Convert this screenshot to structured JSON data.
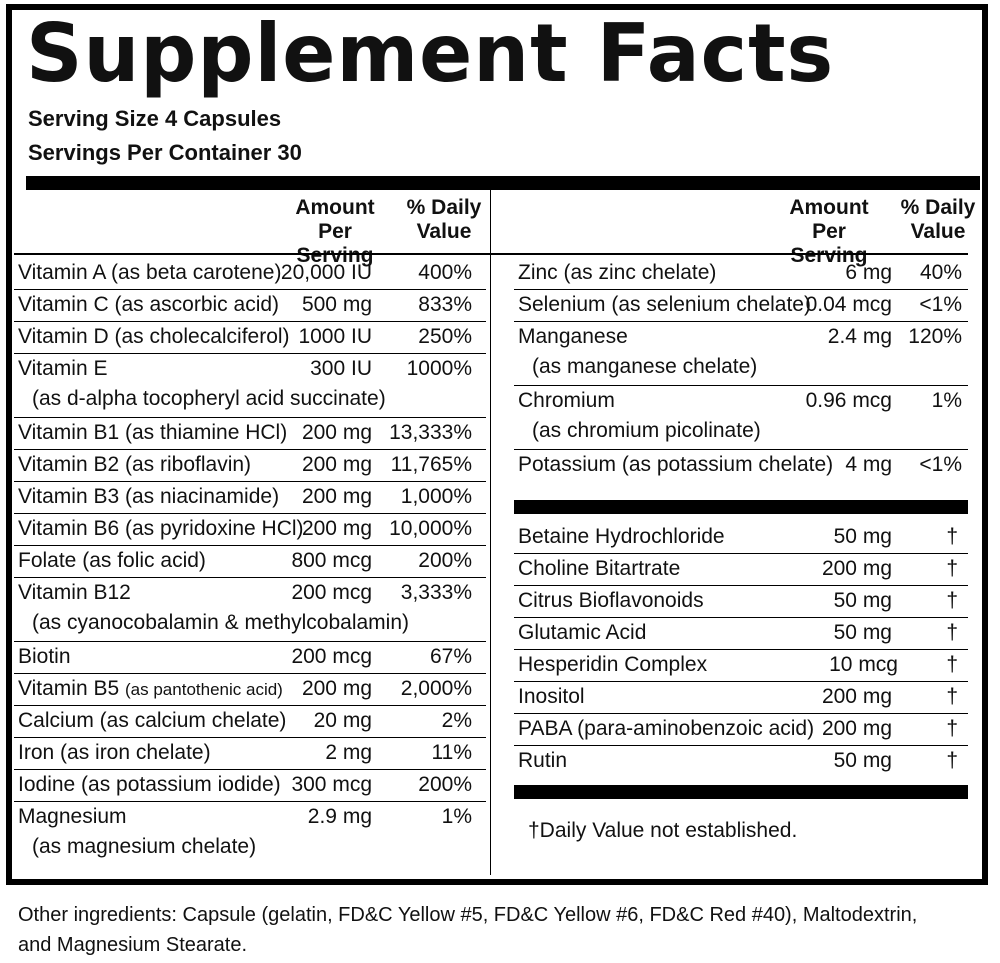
{
  "title": "Supplement Facts",
  "serving_size": "Serving Size 4 Capsules",
  "servings_per_container": "Servings Per Container 30",
  "headers": {
    "amount_line1": "Amount Per",
    "amount_line2": "Serving",
    "dv_line1": "% Daily",
    "dv_line2": "Value"
  },
  "left_rows": [
    {
      "name": "Vitamin A (as beta carotene)",
      "amount": "20,000 IU",
      "dv": "400%"
    },
    {
      "name": "Vitamin C (as ascorbic acid)",
      "amount": "500 mg",
      "dv": "833%"
    },
    {
      "name": "Vitamin D (as cholecalciferol)",
      "amount": "1000 IU",
      "dv": "250%"
    },
    {
      "name": "Vitamin E",
      "sub": "(as d-alpha tocopheryl acid succinate)",
      "amount": "300 IU",
      "dv": "1000%"
    },
    {
      "name": "Vitamin B1 (as thiamine HCl)",
      "amount": "200 mg",
      "dv": "13,333%"
    },
    {
      "name": "Vitamin B2 (as riboflavin)",
      "amount": "200 mg",
      "dv": "11,765%"
    },
    {
      "name": "Vitamin B3 (as niacinamide)",
      "amount": "200 mg",
      "dv": "1,000%"
    },
    {
      "name": "Vitamin B6  (as pyridoxine HCl)",
      "amount": "200 mg",
      "dv": "10,000%"
    },
    {
      "name": "Folate (as folic acid)",
      "amount": "800 mcg",
      "dv": "200%"
    },
    {
      "name": "Vitamin B12",
      "sub": "(as cyanocobalamin & methylcobalamin)",
      "amount": "200 mcg",
      "dv": "3,333%"
    },
    {
      "name": "Biotin",
      "amount": "200 mcg",
      "dv": "67%"
    },
    {
      "name": "Vitamin B5",
      "name_small": "(as pantothenic acid)",
      "amount": "200 mg",
      "dv": "2,000%"
    },
    {
      "name": "Calcium (as calcium chelate)",
      "amount": "20 mg",
      "dv": "2%"
    },
    {
      "name": "Iron (as iron chelate)",
      "amount": "2 mg",
      "dv": "11%"
    },
    {
      "name": "Iodine (as potassium iodide)",
      "amount": "300 mcg",
      "dv": "200%"
    },
    {
      "name": "Magnesium",
      "sub": "(as magnesium chelate)",
      "amount": "2.9 mg",
      "dv": "1%"
    }
  ],
  "right_rows": [
    {
      "name": "Zinc (as zinc chelate)",
      "amount": "6 mg",
      "dv": "40%"
    },
    {
      "name": "Selenium (as selenium chelate)",
      "amount": "0.04 mcg",
      "dv": "<1%"
    },
    {
      "name": "Manganese",
      "sub": "(as manganese chelate)",
      "amount": "2.4 mg",
      "dv": "120%"
    },
    {
      "name": "Chromium",
      "sub": "(as chromium picolinate)",
      "amount": "0.96 mcg",
      "dv": "1%"
    },
    {
      "name": "Potassium (as potassium chelate)",
      "amount": "4 mg",
      "dv": "<1%"
    }
  ],
  "other_rows": [
    {
      "name": "Betaine Hydrochloride",
      "amount": "50 mg",
      "dv": "†"
    },
    {
      "name": "Choline Bitartrate",
      "amount": "200 mg",
      "dv": "†"
    },
    {
      "name": "Citrus Bioflavonoids",
      "amount": "50 mg",
      "dv": "†"
    },
    {
      "name": "Glutamic Acid",
      "amount": "50 mg",
      "dv": "†"
    },
    {
      "name": "Hesperidin Complex",
      "amount": "10 mcg",
      "dv": "†"
    },
    {
      "name": "Inositol",
      "amount": "200 mg",
      "dv": "†"
    },
    {
      "name": "PABA (para-aminobenzoic acid)",
      "amount": "200 mg",
      "dv": "†"
    },
    {
      "name": "Rutin",
      "amount": "50 mg",
      "dv": "†"
    }
  ],
  "footnote": "†Daily Value not established.",
  "other_ingredients_line1": "Other ingredients: Capsule (gelatin, FD&C Yellow #5, FD&C Yellow #6, FD&C Red #40), Maltodextrin,",
  "other_ingredients_line2": "and Magnesium Stearate."
}
